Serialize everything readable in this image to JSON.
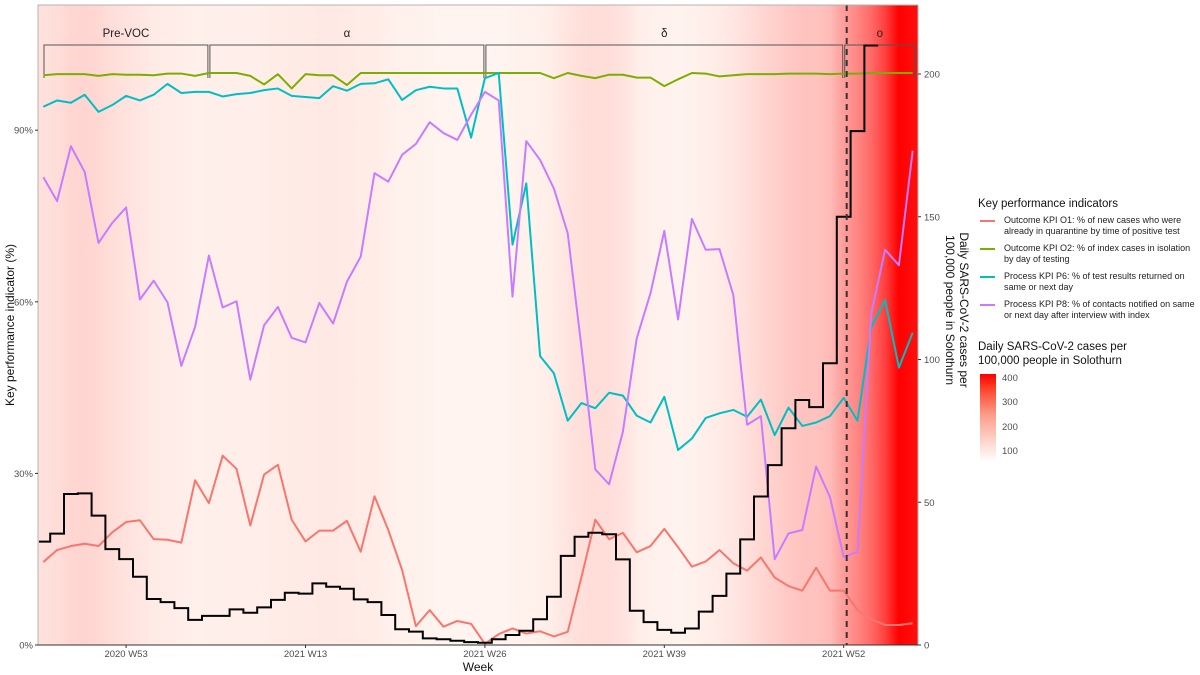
{
  "chart_data": {
    "type": "line",
    "title": "",
    "xlabel": "Week",
    "ylabel_left": "Key performance indicator (%)",
    "ylabel_right": [
      "Daily SARS-CoV-2 cases per",
      "100,000 people in Solothurn"
    ],
    "ylim_left": [
      0,
      112
    ],
    "ylim_right": [
      0,
      224
    ],
    "left_ticks": [
      "0%",
      "30%",
      "60%",
      "90%"
    ],
    "left_tick_values": [
      0,
      30,
      60,
      90
    ],
    "right_ticks": [
      "0",
      "50",
      "100",
      "150",
      "200"
    ],
    "right_tick_values": [
      0,
      50,
      100,
      150,
      200
    ],
    "x_ticks": [
      "2020 W53",
      "2021 W13",
      "2021 W26",
      "2021 W39",
      "2021 W52"
    ],
    "weeks": [
      "2020 W47",
      "2020 W48",
      "2020 W49",
      "2020 W50",
      "2020 W51",
      "2020 W52",
      "2020 W53",
      "2021 W01",
      "2021 W02",
      "2021 W03",
      "2021 W04",
      "2021 W05",
      "2021 W06",
      "2021 W07",
      "2021 W08",
      "2021 W09",
      "2021 W10",
      "2021 W11",
      "2021 W12",
      "2021 W13",
      "2021 W14",
      "2021 W15",
      "2021 W16",
      "2021 W17",
      "2021 W18",
      "2021 W19",
      "2021 W20",
      "2021 W21",
      "2021 W22",
      "2021 W23",
      "2021 W24",
      "2021 W25",
      "2021 W26",
      "2021 W27",
      "2021 W28",
      "2021 W29",
      "2021 W30",
      "2021 W31",
      "2021 W32",
      "2021 W33",
      "2021 W34",
      "2021 W35",
      "2021 W36",
      "2021 W37",
      "2021 W38",
      "2021 W39",
      "2021 W40",
      "2021 W41",
      "2021 W42",
      "2021 W43",
      "2021 W44",
      "2021 W45",
      "2021 W46",
      "2021 W47",
      "2021 W48",
      "2021 W49",
      "2021 W50",
      "2021 W51",
      "2021 W52",
      "2022 W01",
      "2022 W02",
      "2022 W03",
      "2022 W04",
      "2022 W05"
    ],
    "grid": false,
    "legend_placement": "right",
    "series": [
      {
        "key": "o1",
        "name": "Outcome KPI O1: % of new cases who were already in quarantine by time of positive test",
        "color": "#f8766d",
        "axis": "left",
        "values": [
          14.5,
          16.6,
          17.3,
          17.7,
          17.3,
          19.7,
          21.5,
          21.8,
          18.5,
          18.4,
          17.9,
          28.8,
          24.8,
          33.1,
          30.8,
          20.9,
          29.8,
          31.5,
          21.9,
          18.1,
          20.0,
          20.0,
          21.7,
          16.3,
          26.0,
          20.1,
          13.1,
          3.3,
          6.1,
          3.2,
          4.2,
          3.7,
          0.2,
          1.9,
          2.9,
          2.0,
          2.4,
          1.5,
          2.3,
          11.9,
          21.9,
          18.5,
          19.6,
          16.2,
          17.3,
          20.3,
          17.1,
          13.7,
          14.6,
          16.6,
          14.3,
          13.0,
          15.3,
          11.8,
          10.3,
          9.5,
          13.5,
          9.5,
          9.5,
          6.1,
          4.5,
          3.5,
          3.5,
          3.8
        ]
      },
      {
        "key": "o2",
        "name": "Outcome KPI O2: % of index cases in isolation by day of testing",
        "color": "#7cae00",
        "axis": "left",
        "values": [
          99.6,
          99.8,
          99.8,
          99.8,
          99.5,
          99.8,
          99.7,
          99.7,
          99.6,
          99.9,
          99.9,
          99.5,
          100,
          100,
          100,
          99.5,
          98.0,
          99.8,
          97.3,
          99.8,
          99.6,
          99.6,
          97.9,
          100,
          100,
          100,
          100,
          100,
          100,
          100,
          100,
          100,
          100,
          100,
          100,
          100,
          100,
          99.1,
          100,
          99.5,
          99.1,
          99.7,
          99.7,
          99.2,
          99.2,
          97.7,
          98.9,
          100,
          99.9,
          99.4,
          99.6,
          99.8,
          99.8,
          99.8,
          99.9,
          99.9,
          99.9,
          99.8,
          99.9,
          99.9,
          100,
          100,
          100,
          100
        ]
      },
      {
        "key": "p6",
        "name": "Process KPI P6: % of test results returned on same or next day",
        "color": "#00bfc4",
        "axis": "left",
        "values": [
          94.1,
          95.2,
          94.8,
          96.2,
          93.2,
          94.4,
          96.0,
          95.2,
          96.2,
          98.1,
          96.5,
          96.7,
          96.7,
          95.9,
          96.3,
          96.5,
          97.0,
          97.3,
          96.0,
          95.8,
          95.6,
          97.7,
          96.9,
          98.1,
          98.2,
          98.9,
          95.3,
          97.0,
          97.6,
          97.3,
          97.3,
          88.7,
          99.1,
          100,
          70.0,
          80.7,
          50.5,
          47.5,
          39.2,
          42.3,
          41.4,
          44.1,
          43.6,
          40.1,
          38.9,
          43.4,
          34.1,
          36.1,
          39.7,
          40.5,
          41.1,
          39.9,
          42.9,
          36.7,
          41.5,
          38.3,
          38.9,
          40.0,
          43.2,
          39.2,
          55.6,
          60.3,
          48.5,
          54.6
        ]
      },
      {
        "key": "p8",
        "name": "Process KPI P8: % of contacts notified on same or next day after interview with index",
        "color": "#c77cff",
        "axis": "left",
        "values": [
          81.8,
          77.6,
          87.2,
          82.7,
          70.3,
          73.8,
          76.5,
          60.4,
          63.7,
          59.9,
          48.8,
          55.6,
          68.1,
          59.0,
          60.1,
          46.4,
          55.9,
          59.1,
          53.7,
          52.9,
          59.8,
          56.2,
          63.5,
          67.9,
          82.5,
          81.0,
          85.7,
          87.6,
          91.4,
          89.5,
          88.3,
          92.7,
          96.7,
          95.2,
          60.9,
          88.1,
          84.8,
          79.8,
          72.0,
          52.0,
          30.7,
          28.1,
          37.3,
          53.6,
          61.5,
          72.4,
          56.9,
          74.5,
          69.1,
          69.2,
          61.2,
          38.5,
          40.0,
          15.0,
          19.5,
          20.1,
          31.2,
          25.9,
          15.4,
          16.3,
          58.0,
          69.1,
          66.4,
          86.4
        ]
      },
      {
        "key": "cases",
        "name": "",
        "color": "#000000",
        "axis": "right",
        "style": "step",
        "values": [
          36.2,
          39,
          52.9,
          53.1,
          45.3,
          33.6,
          30.1,
          23.9,
          16.1,
          15.0,
          12.9,
          8.8,
          10.2,
          10.2,
          12.5,
          11.3,
          13.2,
          15.8,
          18.3,
          18.0,
          21.6,
          20.4,
          19.7,
          16.0,
          15.0,
          10.5,
          5.5,
          4.7,
          2.3,
          2.0,
          1.5,
          1.0,
          0.8,
          2.0,
          3.5,
          5.0,
          9.0,
          16.9,
          31.2,
          37.9,
          39.3,
          38.8,
          30,
          12,
          8,
          5.3,
          4.3,
          5.8,
          11.7,
          17.2,
          25,
          37,
          52,
          63,
          75.9,
          85.8,
          83.3,
          98.7,
          150,
          180,
          210,
          null,
          null,
          null
        ]
      }
    ],
    "background_cases": {
      "legend_title": [
        "Daily SARS-CoV-2 cases per",
        "100,000 people in Solothurn"
      ],
      "scale_labels": [
        "400",
        "300",
        "200",
        "100"
      ],
      "scale_values": [
        400,
        300,
        200,
        100
      ],
      "low_color": "#ffffff",
      "high_color": "#ff0000",
      "values": [
        36,
        40,
        53,
        55,
        50,
        40,
        32,
        25,
        17,
        15,
        13,
        9,
        10,
        10,
        12,
        11,
        13,
        15,
        18,
        18,
        21,
        20,
        19,
        16,
        15,
        11,
        6,
        5,
        3,
        2,
        2,
        1,
        1,
        2,
        3,
        5,
        9,
        16,
        30,
        38,
        40,
        39,
        32,
        14,
        8,
        5,
        4,
        6,
        12,
        17,
        25,
        37,
        52,
        63,
        76,
        86,
        85,
        100,
        150,
        190,
        240,
        310,
        420,
        400
      ]
    },
    "variants": [
      {
        "label": "Pre-VOC",
        "start": "2020 W47",
        "end": "2021 W06"
      },
      {
        "label": "α",
        "start": "2021 W06",
        "end": "2021 W26"
      },
      {
        "label": "δ",
        "start": "2021 W26",
        "end": "2021 W52"
      },
      {
        "label": "ο",
        "start": "2021 W52",
        "end": "2022 W05"
      }
    ],
    "reference_line": {
      "week": "2021 W52",
      "style": "dashed",
      "color": "#333333"
    }
  },
  "legend": {
    "title": "Key performance indicators"
  }
}
